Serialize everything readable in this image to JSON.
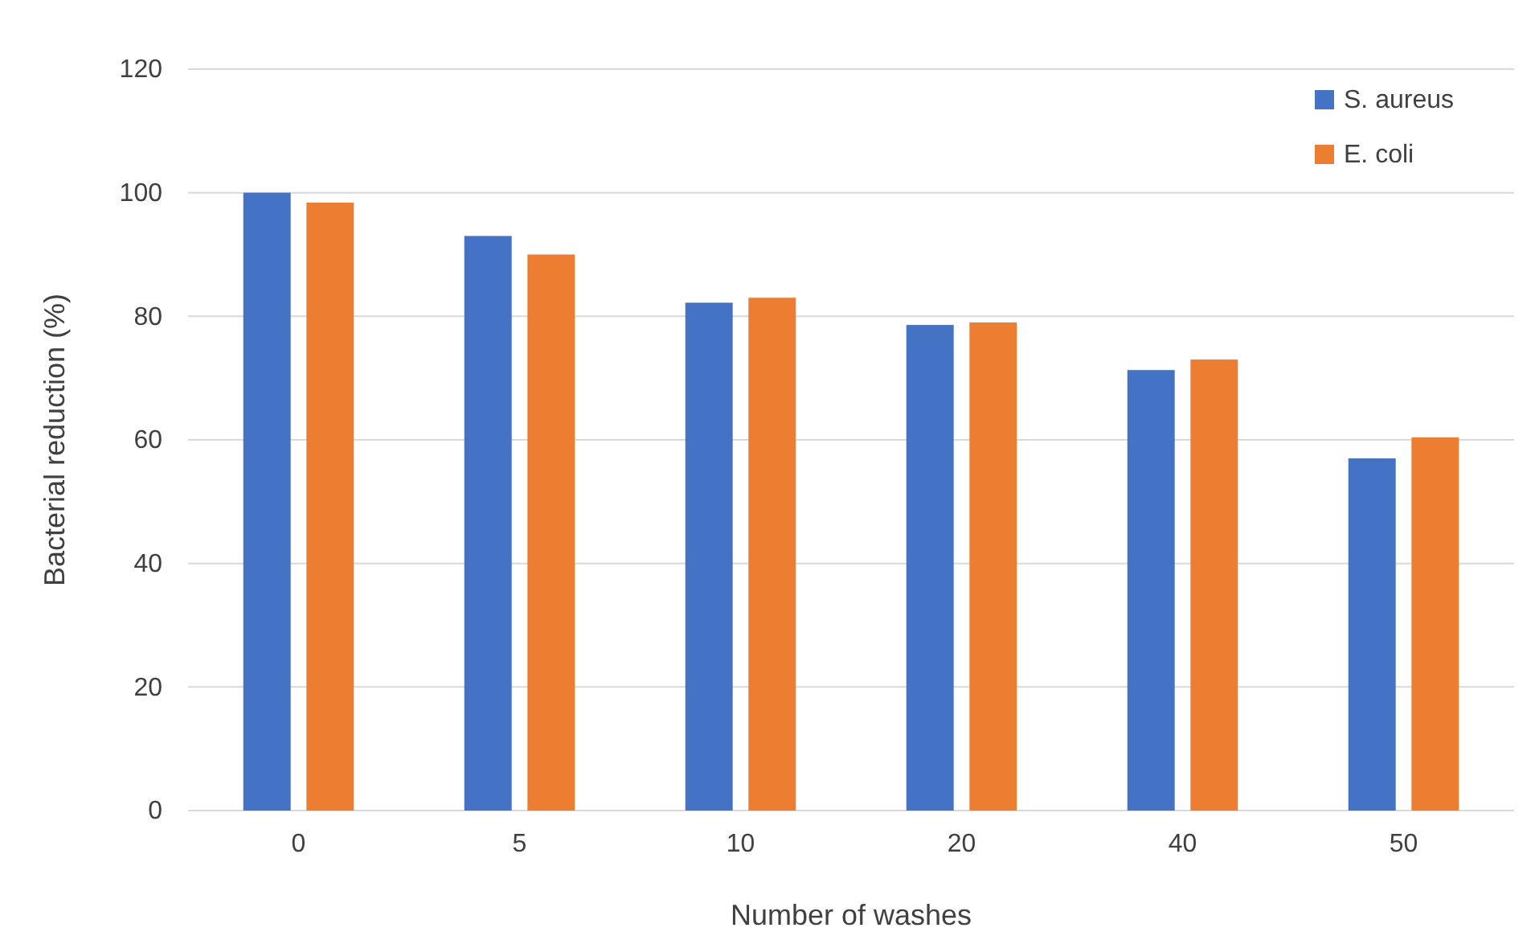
{
  "chart_data": {
    "type": "bar",
    "xlabel": "Number of washes",
    "ylabel": "Bacterial reduction (%)",
    "categories": [
      "0",
      "5",
      "10",
      "20",
      "40",
      "50"
    ],
    "series": [
      {
        "name": "S. aureus",
        "color": "#4472c4",
        "values": [
          100,
          93,
          82.2,
          78.6,
          71.3,
          57
        ]
      },
      {
        "name": "E. coli",
        "color": "#ed7d31",
        "values": [
          98.4,
          90,
          83,
          79,
          73,
          60.4
        ]
      }
    ],
    "ylim": [
      0,
      120
    ],
    "yticks": [
      0,
      20,
      40,
      60,
      80,
      100,
      120
    ],
    "grid": "y",
    "legend": "top right"
  }
}
